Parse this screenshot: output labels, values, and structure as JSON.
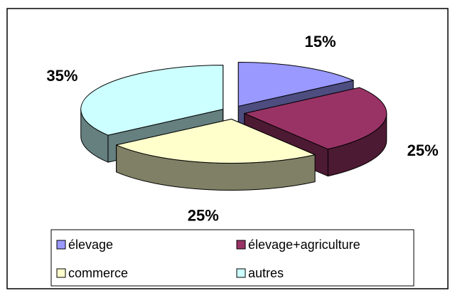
{
  "chart_data": {
    "type": "pie",
    "three_d": true,
    "categories": [
      "élevage",
      "élevage+agriculture",
      "commerce",
      "autres"
    ],
    "values": [
      15,
      25,
      25,
      35
    ],
    "value_labels": [
      "15%",
      "25%",
      "25%",
      "35%"
    ],
    "colors": [
      "#9999ff",
      "#993366",
      "#ffffcc",
      "#ccffff"
    ],
    "legend": "bottom"
  }
}
